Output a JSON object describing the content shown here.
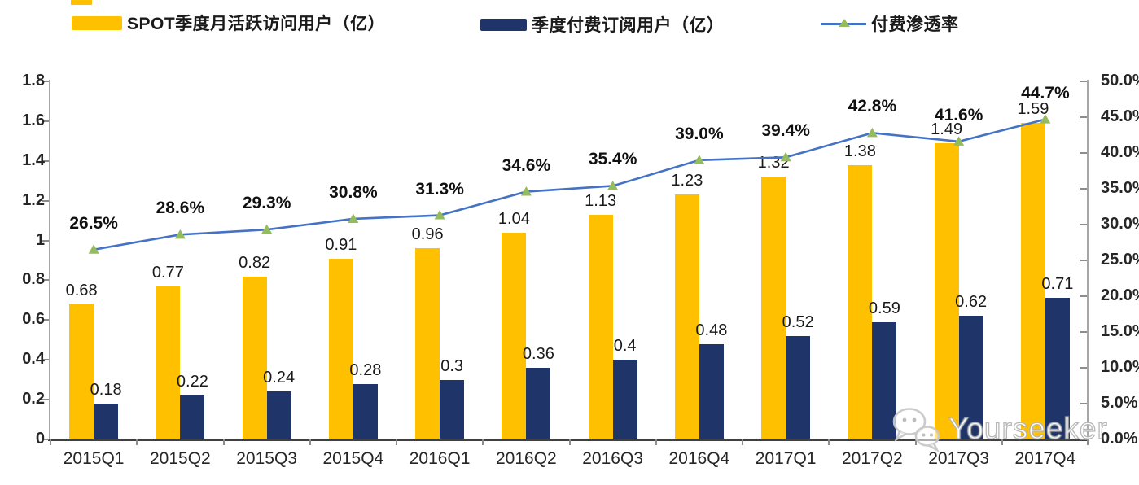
{
  "legend": {
    "mau_label": "SPOT季度月活跃访问用户（亿）",
    "subs_label": "季度付费订阅用户（亿）",
    "penetration_label": "付费渗透率"
  },
  "watermark": {
    "text": "Yourseeker",
    "icon": "wechat-icon"
  },
  "colors": {
    "mau_bar": "#FFC000",
    "subs_bar": "#1F3468",
    "penetration_line": "#4472C4",
    "penetration_marker": "#94BB5E",
    "axis_line": "#A6A6A6",
    "bottom_axis_line": "#404040"
  },
  "chart_data": {
    "type": "bar",
    "title": "",
    "xlabel": "",
    "ylabel": "",
    "grid": false,
    "legend_position": "top",
    "categories": [
      "2015Q1",
      "2015Q2",
      "2015Q3",
      "2015Q4",
      "2016Q1",
      "2016Q2",
      "2016Q3",
      "2016Q4",
      "2017Q1",
      "2017Q2",
      "2017Q3",
      "2017Q4"
    ],
    "series": [
      {
        "name": "SPOT季度月活跃访问用户（亿）",
        "type": "bar",
        "axis": "left",
        "color": "#FFC000",
        "values": [
          0.68,
          0.77,
          0.82,
          0.91,
          0.96,
          1.04,
          1.13,
          1.23,
          1.32,
          1.38,
          1.49,
          1.59
        ],
        "labels": [
          "0.68",
          "0.77",
          "0.82",
          "0.91",
          "0.96",
          "1.04",
          "1.13",
          "1.23",
          "1.32",
          "1.38",
          "1.49",
          "1.59"
        ]
      },
      {
        "name": "季度付费订阅用户（亿）",
        "type": "bar",
        "axis": "left",
        "color": "#1F3468",
        "values": [
          0.18,
          0.22,
          0.24,
          0.28,
          0.3,
          0.36,
          0.4,
          0.48,
          0.52,
          0.59,
          0.62,
          0.71
        ],
        "labels": [
          "0.18",
          "0.22",
          "0.24",
          "0.28",
          "0.3",
          "0.36",
          "0.4",
          "0.48",
          "0.52",
          "0.59",
          "0.62",
          "0.71"
        ]
      },
      {
        "name": "付费渗透率",
        "type": "line",
        "axis": "right",
        "color": "#4472C4",
        "marker": "triangle",
        "marker_color": "#94BB5E",
        "values": [
          26.5,
          28.6,
          29.3,
          30.8,
          31.3,
          34.6,
          35.4,
          39.0,
          39.4,
          42.8,
          41.6,
          44.7
        ],
        "labels": [
          "26.5%",
          "28.6%",
          "29.3%",
          "30.8%",
          "31.3%",
          "34.6%",
          "35.4%",
          "39.0%",
          "39.4%",
          "42.8%",
          "41.6%",
          "44.7%"
        ]
      }
    ],
    "left_axis": {
      "min": 0,
      "max": 1.8,
      "tick_labels": [
        "0",
        "0.2",
        "0.4",
        "0.6",
        "0.8",
        "1",
        "1.2",
        "1.4",
        "1.6",
        "1.8"
      ]
    },
    "right_axis": {
      "min": 0,
      "max": 50,
      "tick_labels": [
        "0.0%",
        "5.0%",
        "10.0%",
        "15.0%",
        "20.0%",
        "25.0%",
        "30.0%",
        "35.0%",
        "40.0%",
        "45.0%",
        "50.0%"
      ]
    }
  }
}
